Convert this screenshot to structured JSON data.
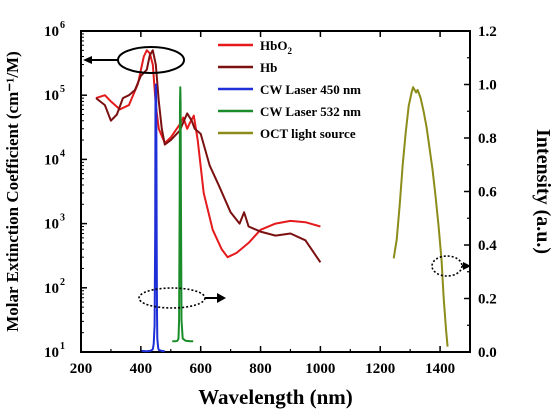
{
  "chart_data": {
    "type": "line",
    "xlabel": "Wavelength (nm)",
    "ylabel_left": "Molar Extinction Coefficient (cm⁻¹/M)",
    "ylabel_right": "Intensity (a.u.)",
    "xlim": [
      200,
      1500
    ],
    "ylim_left": [
      10,
      1000000
    ],
    "ylim_right": [
      0,
      1.2
    ],
    "y_left_scale": "log",
    "grid": false,
    "legend_position": "top-center",
    "x_ticks": [
      "200",
      "400",
      "600",
      "800",
      "1000",
      "1200",
      "1400"
    ],
    "y_left_ticks": [
      "10",
      "10",
      "10",
      "10",
      "10",
      "10"
    ],
    "y_left_tick_exponents": [
      "1",
      "2",
      "3",
      "4",
      "5",
      "6"
    ],
    "y_right_ticks": [
      "0.0",
      "0.2",
      "0.4",
      "0.6",
      "0.8",
      "1.0",
      "1.2"
    ],
    "series": [
      {
        "name": "HbO2",
        "axis": "left",
        "color": "#e41a1c",
        "x": [
          250,
          280,
          300,
          330,
          360,
          390,
          410,
          420,
          430,
          440,
          450,
          460,
          480,
          500,
          530,
          542,
          555,
          565,
          577,
          590,
          610,
          640,
          670,
          690,
          720,
          760,
          800,
          850,
          900,
          950,
          1000
        ],
        "y": [
          90000,
          100000,
          80000,
          60000,
          70000,
          150000,
          400000,
          500000,
          450000,
          300000,
          70000,
          30000,
          18000,
          22000,
          35000,
          45000,
          30000,
          38000,
          48000,
          20000,
          3000,
          800,
          400,
          300,
          350,
          500,
          800,
          1000,
          1100,
          1050,
          900
        ]
      },
      {
        "name": "Hb",
        "axis": "left",
        "color": "#7a1010",
        "x": [
          250,
          280,
          300,
          320,
          340,
          360,
          380,
          400,
          420,
          430,
          440,
          450,
          460,
          470,
          480,
          500,
          530,
          555,
          570,
          580,
          600,
          630,
          660,
          700,
          730,
          745,
          760,
          800,
          850,
          900,
          950,
          1000
        ],
        "y": [
          90000,
          70000,
          40000,
          50000,
          90000,
          100000,
          120000,
          200000,
          250000,
          420000,
          500000,
          300000,
          80000,
          30000,
          17000,
          20000,
          28000,
          52000,
          40000,
          30000,
          25000,
          8000,
          4000,
          1500,
          1000,
          1500,
          900,
          750,
          650,
          700,
          550,
          250
        ]
      },
      {
        "name": "CW Laser 450 nm",
        "axis": "right",
        "color": "#1f2fd8",
        "x": [
          400,
          420,
          430,
          435,
          440,
          443,
          446,
          448,
          449,
          450,
          451,
          452,
          453,
          454,
          455,
          458,
          460,
          470,
          480
        ],
        "y": [
          0.004,
          0.003,
          0.004,
          0.006,
          0.01,
          0.03,
          0.1,
          0.45,
          0.98,
          1.0,
          0.99,
          0.8,
          0.4,
          0.15,
          0.05,
          0.015,
          0.008,
          0.004,
          0.003
        ]
      },
      {
        "name": "CW Laser 532 nm",
        "axis": "right",
        "color": "#1a8c2a",
        "x": [
          505,
          515,
          522,
          526,
          528,
          530,
          531,
          532,
          533,
          534,
          536,
          540,
          550,
          565,
          575
        ],
        "y": [
          0.04,
          0.04,
          0.042,
          0.05,
          0.12,
          0.6,
          0.93,
          0.99,
          0.93,
          0.6,
          0.12,
          0.05,
          0.042,
          0.04,
          0.04
        ]
      },
      {
        "name": "OCT light source",
        "axis": "right",
        "color": "#8c8c1a",
        "x": [
          1245,
          1255,
          1265,
          1275,
          1285,
          1295,
          1305,
          1310,
          1315,
          1320,
          1325,
          1335,
          1345,
          1355,
          1365,
          1375,
          1385,
          1395,
          1405,
          1412,
          1420,
          1425
        ],
        "y": [
          0.35,
          0.42,
          0.55,
          0.7,
          0.82,
          0.92,
          0.97,
          0.99,
          0.98,
          0.97,
          0.98,
          0.95,
          0.9,
          0.84,
          0.76,
          0.68,
          0.58,
          0.47,
          0.34,
          0.2,
          0.08,
          0.02
        ]
      }
    ],
    "legend_labels": [
      "HbO",
      "Hb",
      "CW Laser 450 nm",
      "CW Laser 532 nm",
      "OCT light source"
    ],
    "legend_subscript": "2"
  }
}
